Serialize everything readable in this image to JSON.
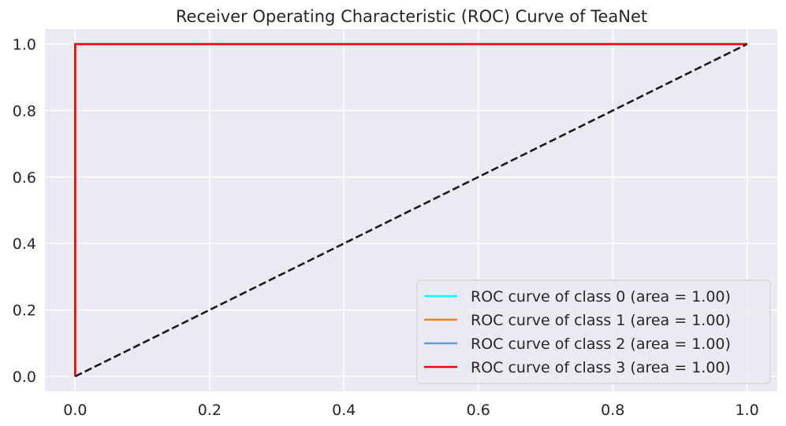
{
  "chart_data": {
    "type": "line",
    "title": "Receiver Operating Characteristic (ROC) Curve of TeaNet",
    "xlabel": "",
    "ylabel": "",
    "xlim": [
      -0.045,
      1.045
    ],
    "ylim": [
      -0.045,
      1.045
    ],
    "x_ticks": [
      "0.0",
      "0.2",
      "0.4",
      "0.6",
      "0.8",
      "1.0"
    ],
    "y_ticks": [
      "0.0",
      "0.2",
      "0.4",
      "0.6",
      "0.8",
      "1.0"
    ],
    "grid": true,
    "legend_position": "lower right",
    "background_color": "#EAEAF2",
    "series": [
      {
        "name": "ROC curve of class 0 (area = 1.00)",
        "color": "#00FFFF",
        "x": [
          0,
          0,
          1
        ],
        "y": [
          0,
          1,
          1
        ]
      },
      {
        "name": "ROC curve of class 1 (area = 1.00)",
        "color": "#FF7F0E",
        "x": [
          0,
          0,
          1
        ],
        "y": [
          0,
          1,
          1
        ]
      },
      {
        "name": "ROC curve of class 2 (area = 1.00)",
        "color": "#6495ED",
        "x": [
          0,
          0,
          1
        ],
        "y": [
          0,
          1,
          1
        ]
      },
      {
        "name": "ROC curve of class 3 (area = 1.00)",
        "color": "#FF0000",
        "x": [
          0,
          0,
          1
        ],
        "y": [
          0,
          1,
          1
        ]
      }
    ],
    "reference_line": {
      "color": "#1a1a1a",
      "style": "dashed",
      "x": [
        0,
        1
      ],
      "y": [
        0,
        1
      ]
    }
  }
}
